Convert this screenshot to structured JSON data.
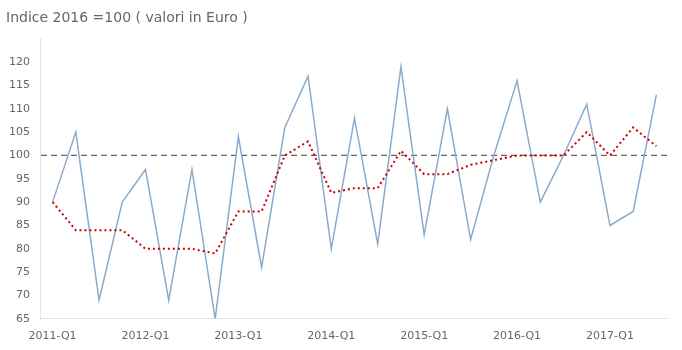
{
  "chart_data": {
    "type": "line",
    "title": "Indice 2016 =100 ( valori in Euro )",
    "categories": [
      "2011-Q1",
      null,
      null,
      null,
      "2012-Q1",
      null,
      null,
      null,
      "2013-Q1",
      null,
      null,
      null,
      "2014-Q1",
      null,
      null,
      null,
      "2015-Q1",
      null,
      null,
      null,
      "2016-Q1",
      null,
      null,
      null,
      "2017-Q1",
      null,
      null
    ],
    "series": [
      {
        "color": "#8AABCC",
        "line_style": "solid",
        "marker": "none",
        "values": [
          90,
          105,
          69,
          90,
          97,
          69,
          97,
          65,
          104,
          76,
          106,
          117,
          80,
          108,
          81,
          119,
          83,
          110,
          82,
          100,
          116,
          90,
          100,
          111,
          85,
          88,
          113
        ]
      },
      {
        "color": "#CC0000",
        "line_style": "dotted",
        "marker": "none",
        "values": [
          90,
          84,
          84,
          84,
          80,
          80,
          80,
          79,
          88,
          88,
          100,
          103,
          92,
          93,
          93,
          101,
          96,
          96,
          98,
          99,
          100,
          100,
          100,
          105,
          100,
          106,
          102
        ]
      }
    ],
    "hlines": [
      {
        "value": 100,
        "color": "#666666",
        "line_style": "dashed"
      }
    ],
    "ylim": [
      65,
      125
    ],
    "yticks": [
      65,
      70,
      75,
      80,
      85,
      90,
      95,
      100,
      105,
      110,
      115,
      120
    ],
    "grid": false
  }
}
